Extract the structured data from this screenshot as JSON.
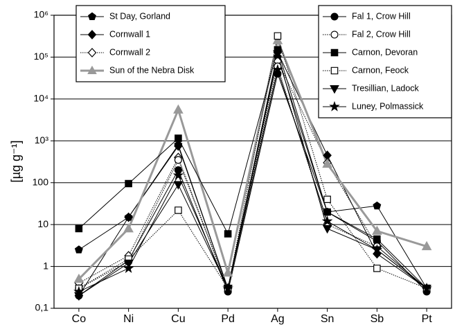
{
  "chart_data": {
    "type": "line",
    "y_label": "[µg g⁻¹]",
    "log_y": true,
    "grid": true,
    "categories": [
      "Co",
      "Ni",
      "Cu",
      "Pd",
      "Ag",
      "Sn",
      "Sb",
      "Pt"
    ],
    "ylim": [
      0.1,
      1000000
    ],
    "yticks": [
      {
        "value": 0.1,
        "label": "0,1"
      },
      1,
      10,
      100,
      {
        "value": 1000,
        "label": "10³"
      },
      {
        "value": 10000,
        "label": "10⁴"
      },
      {
        "value": 100000,
        "label": "10⁵"
      },
      {
        "value": 1000000,
        "label": "10⁶"
      }
    ],
    "series": [
      {
        "name": "St Day, Gorland",
        "color": "#000000",
        "marker": "pentagon",
        "filled": true,
        "dash": "solid",
        "legend": "upper left",
        "values": [
          2.5,
          15,
          800,
          0.3,
          100000,
          20,
          28,
          0.3
        ]
      },
      {
        "name": "Cornwall 1",
        "color": "#000000",
        "marker": "diamond",
        "filled": true,
        "dash": "solid",
        "legend": "upper left",
        "values": [
          0.2,
          15,
          750,
          0.3,
          130000,
          450,
          2,
          0.3
        ]
      },
      {
        "name": "Cornwall 2",
        "color": "#000000",
        "marker": "diamond",
        "filled": false,
        "dash": "dotted",
        "legend": "upper left",
        "values": [
          0.4,
          1.8,
          400,
          0.3,
          80000,
          300,
          3,
          0.3
        ]
      },
      {
        "name": "Sun of the Nebra Disk",
        "color": "#999999",
        "marker": "triangle",
        "filled": true,
        "dash": "thick",
        "legend": "upper left",
        "values": [
          0.5,
          8,
          5500,
          0.7,
          250000,
          280,
          7,
          3
        ]
      },
      {
        "name": "Fal 1, Crow Hill",
        "color": "#000000",
        "marker": "circle",
        "filled": true,
        "dash": "solid",
        "legend": "upper right",
        "values": [
          0.2,
          1.4,
          200,
          0.25,
          40000,
          20,
          4,
          0.25
        ]
      },
      {
        "name": "Fal 2, Crow Hill",
        "color": "#000000",
        "marker": "circle",
        "filled": false,
        "dash": "dotted",
        "legend": "upper right",
        "values": [
          0.3,
          1.3,
          350,
          0.3,
          60000,
          10,
          3,
          0.3
        ]
      },
      {
        "name": "Carnon, Devoran",
        "color": "#000000",
        "marker": "square",
        "filled": true,
        "dash": "solid",
        "legend": "upper right",
        "values": [
          8,
          95,
          1150,
          6,
          150000,
          20,
          4.5,
          0.3
        ]
      },
      {
        "name": "Carnon, Feock",
        "color": "#000000",
        "marker": "square",
        "filled": false,
        "dash": "dotted",
        "legend": "upper right",
        "values": [
          0.3,
          1.5,
          22,
          0.3,
          320000,
          40,
          0.9,
          0.3
        ]
      },
      {
        "name": "Tresillian, Ladock",
        "color": "#000000",
        "marker": "triangle-down",
        "filled": true,
        "dash": "solid",
        "legend": "upper right",
        "values": [
          0.2,
          1.2,
          90,
          0.3,
          120000,
          8,
          2.5,
          0.3
        ]
      },
      {
        "name": "Luney, Polmassick",
        "color": "#000000",
        "marker": "star",
        "filled": true,
        "dash": "solid",
        "legend": "upper right",
        "values": [
          0.25,
          0.9,
          150,
          0.3,
          50000,
          12,
          2.5,
          0.3
        ]
      }
    ]
  }
}
